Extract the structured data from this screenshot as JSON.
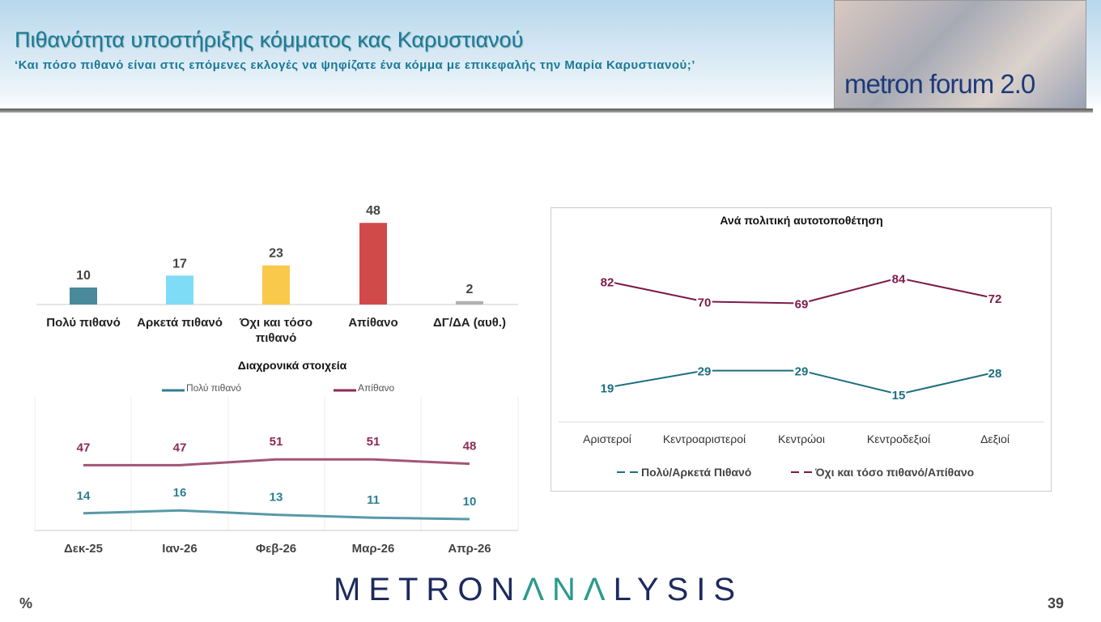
{
  "header": {
    "title": "Πιθανότητα υποστήριξης κόμματος κας Καρυστιανού",
    "subtitle": "‘Και πόσο πιθανό είναι στις επόμενες εκλογές να ψηφίζατε ένα κόμμα με επικεφαλής την Μαρία Καρυστιανού;’",
    "logo_text": "metron forum 2.0"
  },
  "footer": {
    "brand_a": "METRON",
    "brand_b": "ΛNΛ",
    "brand_c": "LYSIS",
    "unit": "%",
    "page": "39"
  },
  "chart_data": [
    {
      "type": "bar",
      "categories": [
        "Πολύ πιθανό",
        "Αρκετά πιθανό",
        "Όχι και τόσο πιθανό",
        "Απίθανο",
        "ΔΓ/ΔΑ (αυθ.)"
      ],
      "values": [
        10,
        17,
        23,
        48,
        2
      ],
      "colors": [
        "#4a8a9c",
        "#7fdcf7",
        "#f9c94c",
        "#d14a4a",
        "#b0b0b0"
      ]
    },
    {
      "type": "line",
      "title": "Διαχρονικά στοιχεία",
      "categories": [
        "Δεκ-25",
        "Ιαν-26",
        "Φεβ-26",
        "Μαρ-26",
        "Απρ-26"
      ],
      "series": [
        {
          "name": "Πολύ πιθανό",
          "values": [
            14,
            16,
            13,
            11,
            10
          ],
          "color": "#2e7f93"
        },
        {
          "name": "Απίθανο",
          "values": [
            47,
            47,
            51,
            51,
            48
          ],
          "color": "#8c2a55"
        }
      ],
      "legend": "top"
    },
    {
      "type": "line",
      "title": "Ανά πολιτική αυτοτοποθέτηση",
      "categories": [
        "Αριστεροί",
        "Κεντροαριστεροί",
        "Κεντρώοι",
        "Κεντροδεξιοί",
        "Δεξιοί"
      ],
      "series": [
        {
          "name": "Πολύ/Αρκετά Πιθανό",
          "values": [
            19,
            29,
            29,
            15,
            28
          ],
          "color": "#1d6e80"
        },
        {
          "name": "Όχι και τόσο πιθανό/Απίθανο",
          "values": [
            82,
            70,
            69,
            84,
            72
          ],
          "color": "#7d1a4a"
        }
      ],
      "legend": "bottom"
    }
  ]
}
